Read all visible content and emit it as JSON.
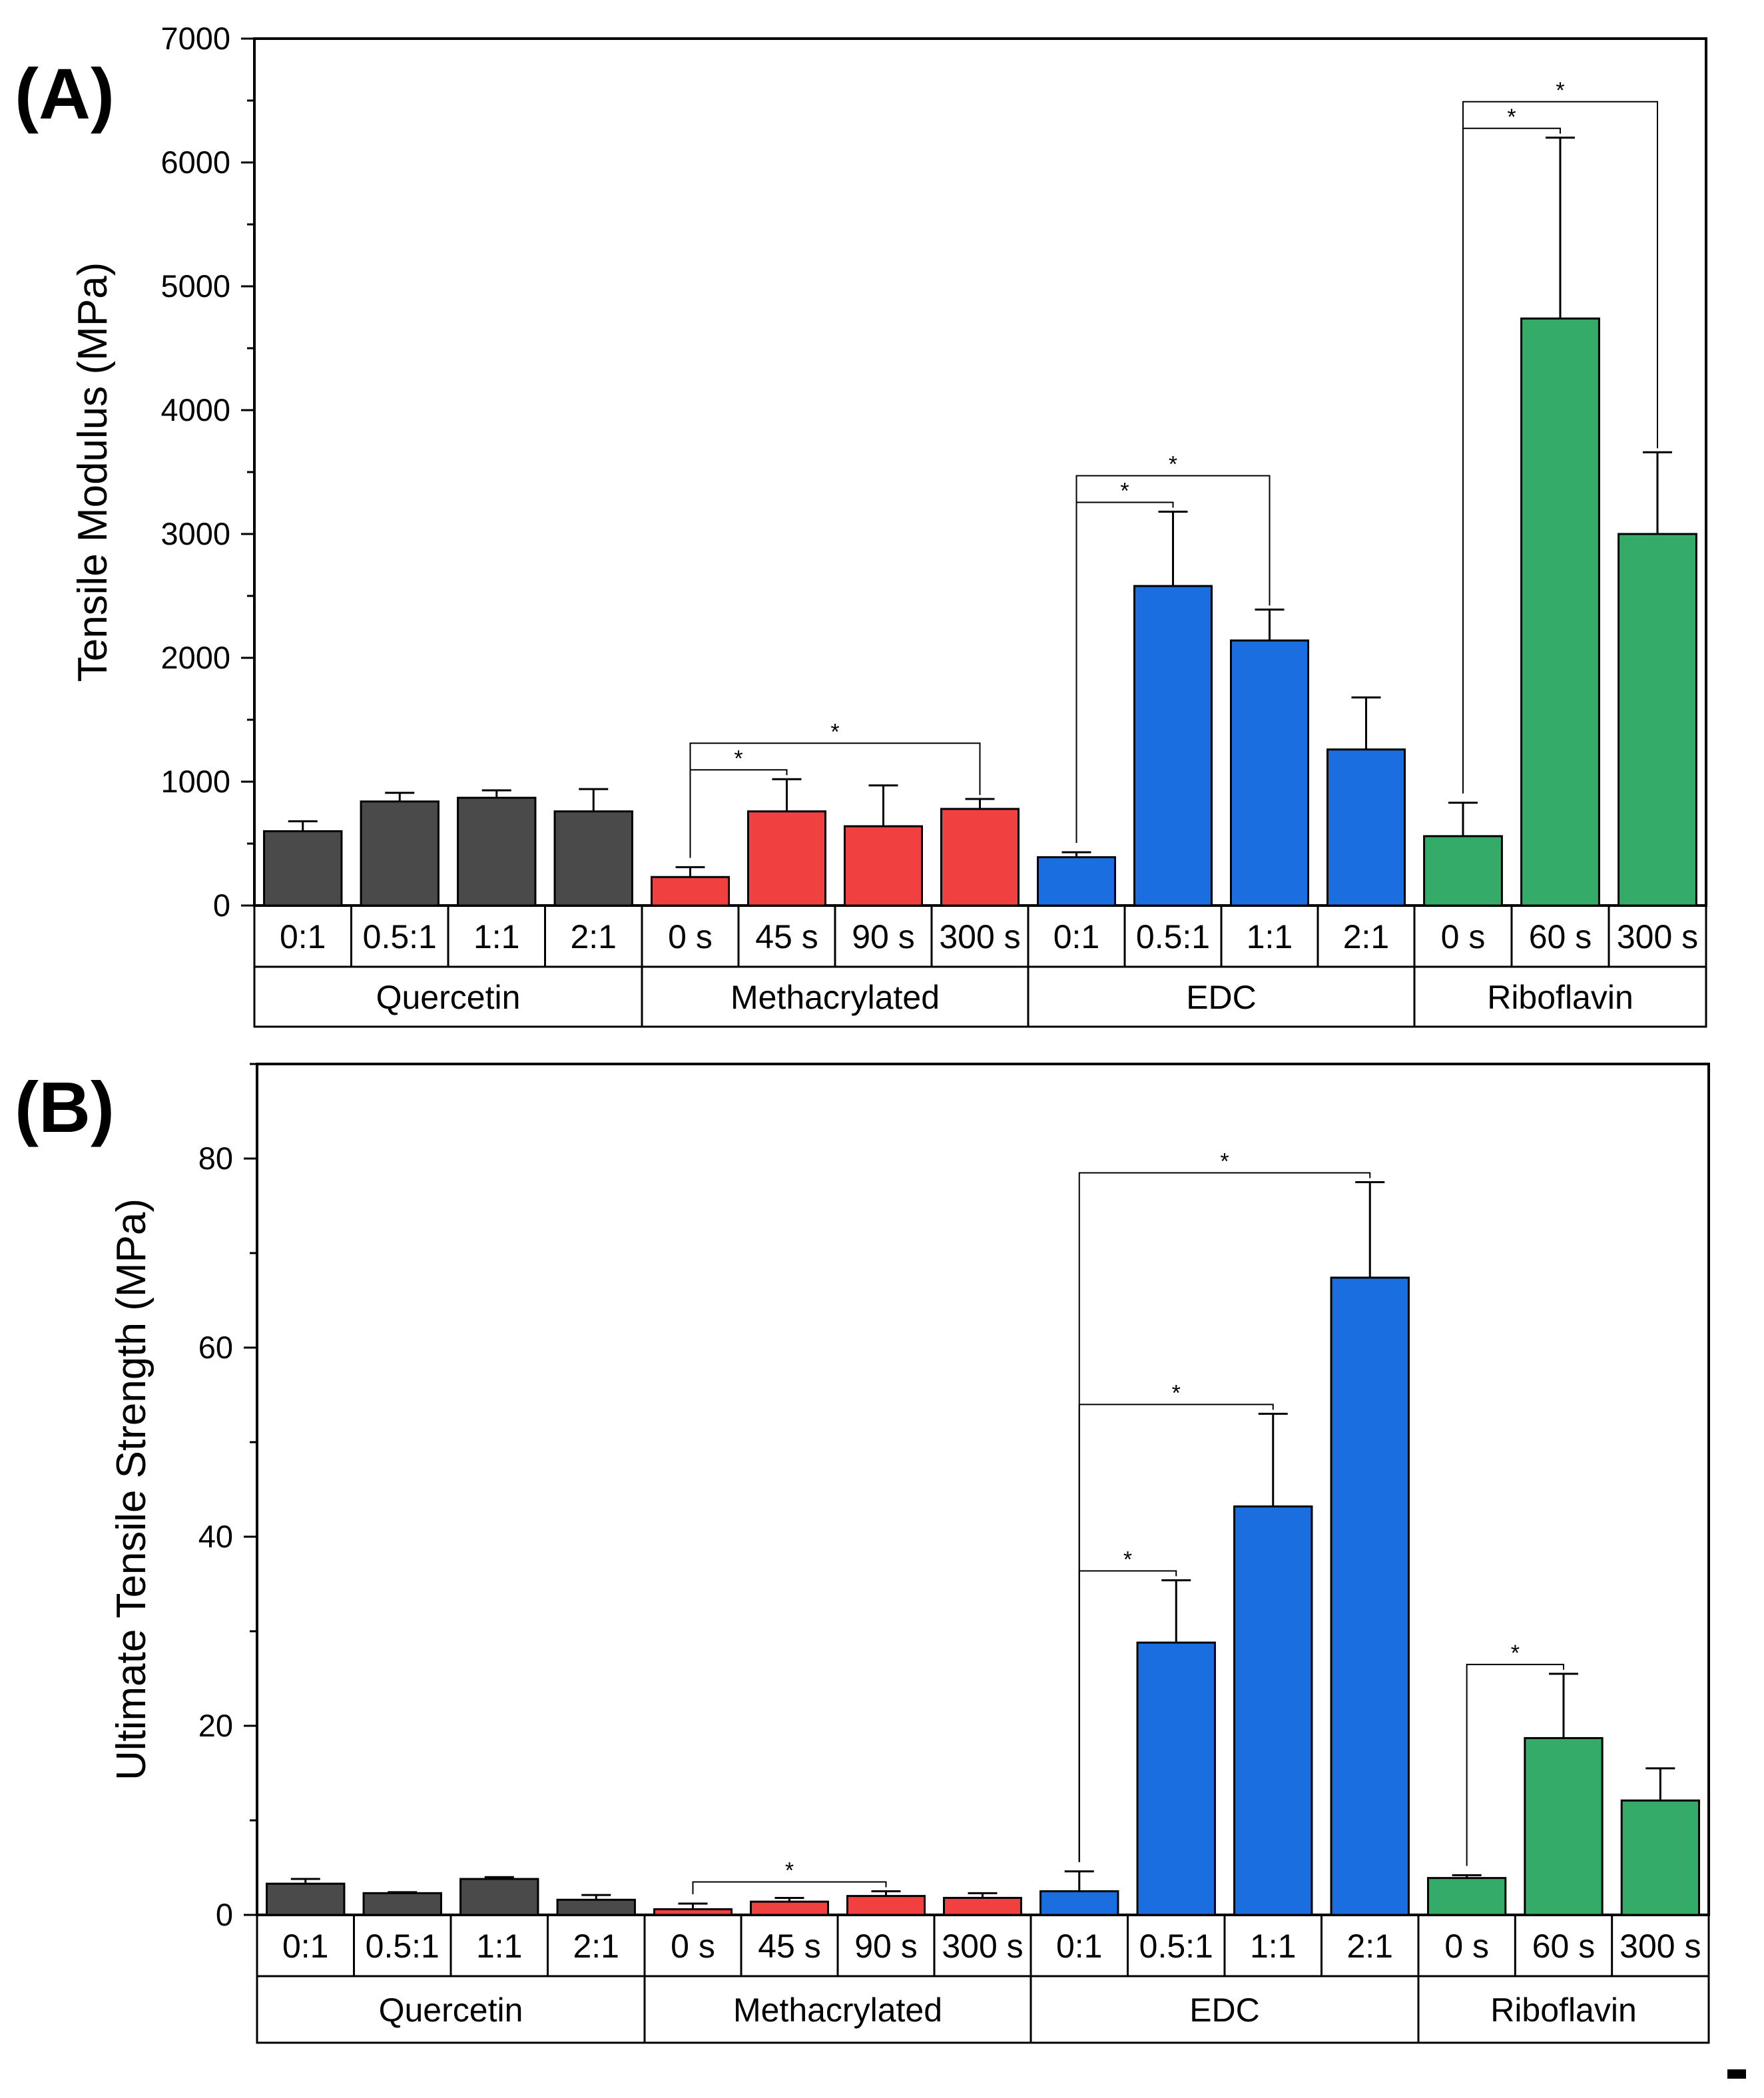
{
  "chart_data": [
    {
      "type": "bar",
      "panel_label": "(A)",
      "ylabel": "Tensile Modulus (MPa)",
      "ylim": [
        0,
        7000
      ],
      "yticks": [
        0,
        1000,
        2000,
        3000,
        4000,
        5000,
        6000,
        7000
      ],
      "groups": [
        {
          "name": "Quercetin",
          "color": "#4a4a4a",
          "categories": [
            "0:1",
            "0.5:1",
            "1:1",
            "2:1"
          ],
          "values": [
            600,
            840,
            870,
            760
          ],
          "errors": [
            80,
            70,
            60,
            180
          ]
        },
        {
          "name": "Methacrylated",
          "color": "#f04040",
          "categories": [
            "0 s",
            "45 s",
            "90 s",
            "300 s"
          ],
          "values": [
            230,
            760,
            640,
            780
          ],
          "errors": [
            80,
            260,
            330,
            80
          ]
        },
        {
          "name": "EDC",
          "color": "#1a6ee0",
          "categories": [
            "0:1",
            "0.5:1",
            "1:1",
            "2:1"
          ],
          "values": [
            390,
            2580,
            2140,
            1260
          ],
          "errors": [
            40,
            600,
            250,
            420
          ]
        },
        {
          "name": "Riboflavin",
          "color": "#35ab6a",
          "categories": [
            "0 s",
            "60 s",
            "300 s"
          ],
          "values": [
            560,
            4740,
            3000
          ],
          "errors": [
            270,
            1460,
            660
          ]
        }
      ],
      "significance": [
        {
          "from": [
            1,
            0
          ],
          "to": [
            1,
            1
          ],
          "label": "*"
        },
        {
          "from": [
            1,
            0
          ],
          "to": [
            1,
            3
          ],
          "label": "*"
        },
        {
          "from": [
            2,
            0
          ],
          "to": [
            2,
            1
          ],
          "label": "*"
        },
        {
          "from": [
            2,
            0
          ],
          "to": [
            2,
            2
          ],
          "label": "*"
        },
        {
          "from": [
            3,
            0
          ],
          "to": [
            3,
            1
          ],
          "label": "*"
        },
        {
          "from": [
            3,
            0
          ],
          "to": [
            3,
            2
          ],
          "label": "*"
        }
      ]
    },
    {
      "type": "bar",
      "panel_label": "(B)",
      "ylabel": "Ultimate Tensile Strength (MPa)",
      "ylim": [
        0,
        90
      ],
      "yticks": [
        0,
        20,
        40,
        60,
        80
      ],
      "groups": [
        {
          "name": "Quercetin",
          "color": "#4a4a4a",
          "categories": [
            "0:1",
            "0.5:1",
            "1:1",
            "2:1"
          ],
          "values": [
            3.3,
            2.3,
            3.8,
            1.6
          ],
          "errors": [
            0.5,
            0.1,
            0.2,
            0.5
          ]
        },
        {
          "name": "Methacrylated",
          "color": "#f04040",
          "categories": [
            "0 s",
            "45 s",
            "90 s",
            "300 s"
          ],
          "values": [
            0.6,
            1.4,
            2.0,
            1.8
          ],
          "errors": [
            0.6,
            0.4,
            0.5,
            0.5
          ]
        },
        {
          "name": "EDC",
          "color": "#1a6ee0",
          "categories": [
            "0:1",
            "0.5:1",
            "1:1",
            "2:1"
          ],
          "values": [
            2.5,
            28.8,
            43.2,
            67.4
          ],
          "errors": [
            2.1,
            6.6,
            9.8,
            10.1
          ]
        },
        {
          "name": "Riboflavin",
          "color": "#35ab6a",
          "categories": [
            "0 s",
            "60 s",
            "300 s"
          ],
          "values": [
            3.9,
            18.7,
            12.1
          ],
          "errors": [
            0.3,
            6.8,
            3.4
          ]
        }
      ],
      "significance": [
        {
          "from": [
            1,
            0
          ],
          "to": [
            1,
            2
          ],
          "label": "*"
        },
        {
          "from": [
            2,
            0
          ],
          "to": [
            2,
            1
          ],
          "label": "*"
        },
        {
          "from": [
            2,
            0
          ],
          "to": [
            2,
            2
          ],
          "label": "*"
        },
        {
          "from": [
            2,
            0
          ],
          "to": [
            2,
            3
          ],
          "label": "*"
        },
        {
          "from": [
            3,
            0
          ],
          "to": [
            3,
            1
          ],
          "label": "*"
        }
      ]
    }
  ]
}
